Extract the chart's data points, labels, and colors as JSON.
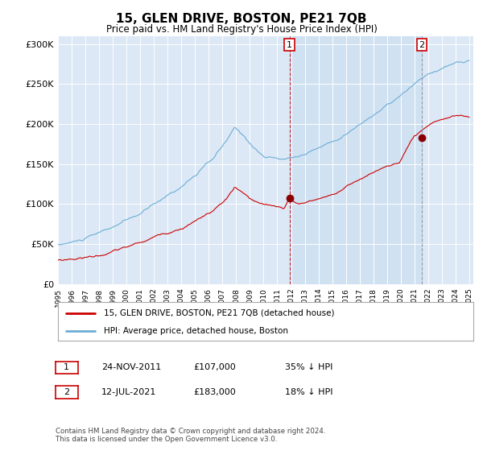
{
  "title": "15, GLEN DRIVE, BOSTON, PE21 7QB",
  "subtitle": "Price paid vs. HM Land Registry's House Price Index (HPI)",
  "hpi_color": "#6baed6",
  "price_color": "#cc0000",
  "marker_color": "#cc0000",
  "bg_color": "#dce8f5",
  "shade_color": "#d0e4f5",
  "ylim": [
    0,
    310000
  ],
  "yticks": [
    0,
    50000,
    100000,
    150000,
    200000,
    250000,
    300000
  ],
  "ytick_labels": [
    "£0",
    "£50K",
    "£100K",
    "£150K",
    "£200K",
    "£250K",
    "£300K"
  ],
  "sale1_year": 2011.896,
  "sale1_price": 107000,
  "sale1_label": "35% ↓ HPI",
  "sale1_date": "24-NOV-2011",
  "sale2_year": 2021.536,
  "sale2_price": 183000,
  "sale2_label": "18% ↓ HPI",
  "sale2_date": "12-JUL-2021",
  "legend_line1": "15, GLEN DRIVE, BOSTON, PE21 7QB (detached house)",
  "legend_line2": "HPI: Average price, detached house, Boston",
  "footnote": "Contains HM Land Registry data © Crown copyright and database right 2024.\nThis data is licensed under the Open Government Licence v3.0.",
  "xstart_year": 1995,
  "xend_year": 2025
}
